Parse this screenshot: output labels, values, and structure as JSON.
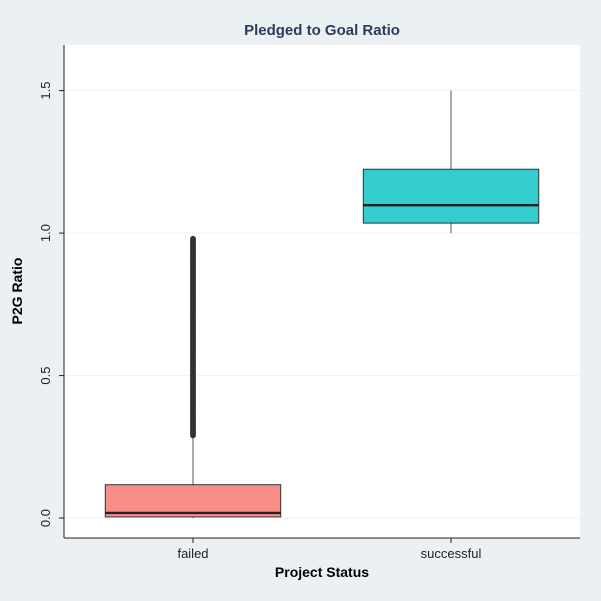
{
  "chart_data": {
    "type": "box",
    "title": "Pledged to Goal Ratio",
    "xlabel": "Project Status",
    "ylabel": "P2G Ratio",
    "categories": [
      "failed",
      "successful"
    ],
    "ylim": [
      -0.07,
      1.66
    ],
    "yticks": [
      0.0,
      0.5,
      1.0,
      1.5
    ],
    "ytick_labels": [
      "0.0",
      "0.5",
      "1.0",
      "1.5"
    ],
    "grid": true,
    "boxes": [
      {
        "category": "failed",
        "min": 0.0,
        "q1": 0.004,
        "median": 0.018,
        "q3": 0.117,
        "whisker_high": 0.289,
        "outlier_range": [
          0.29,
          0.98
        ],
        "color": "#f98d88"
      },
      {
        "category": "successful",
        "min": 1.0,
        "q1": 1.035,
        "median": 1.098,
        "q3": 1.224,
        "whisker_high": 1.5,
        "outlier_range": null,
        "color": "#33cccf"
      }
    ]
  }
}
